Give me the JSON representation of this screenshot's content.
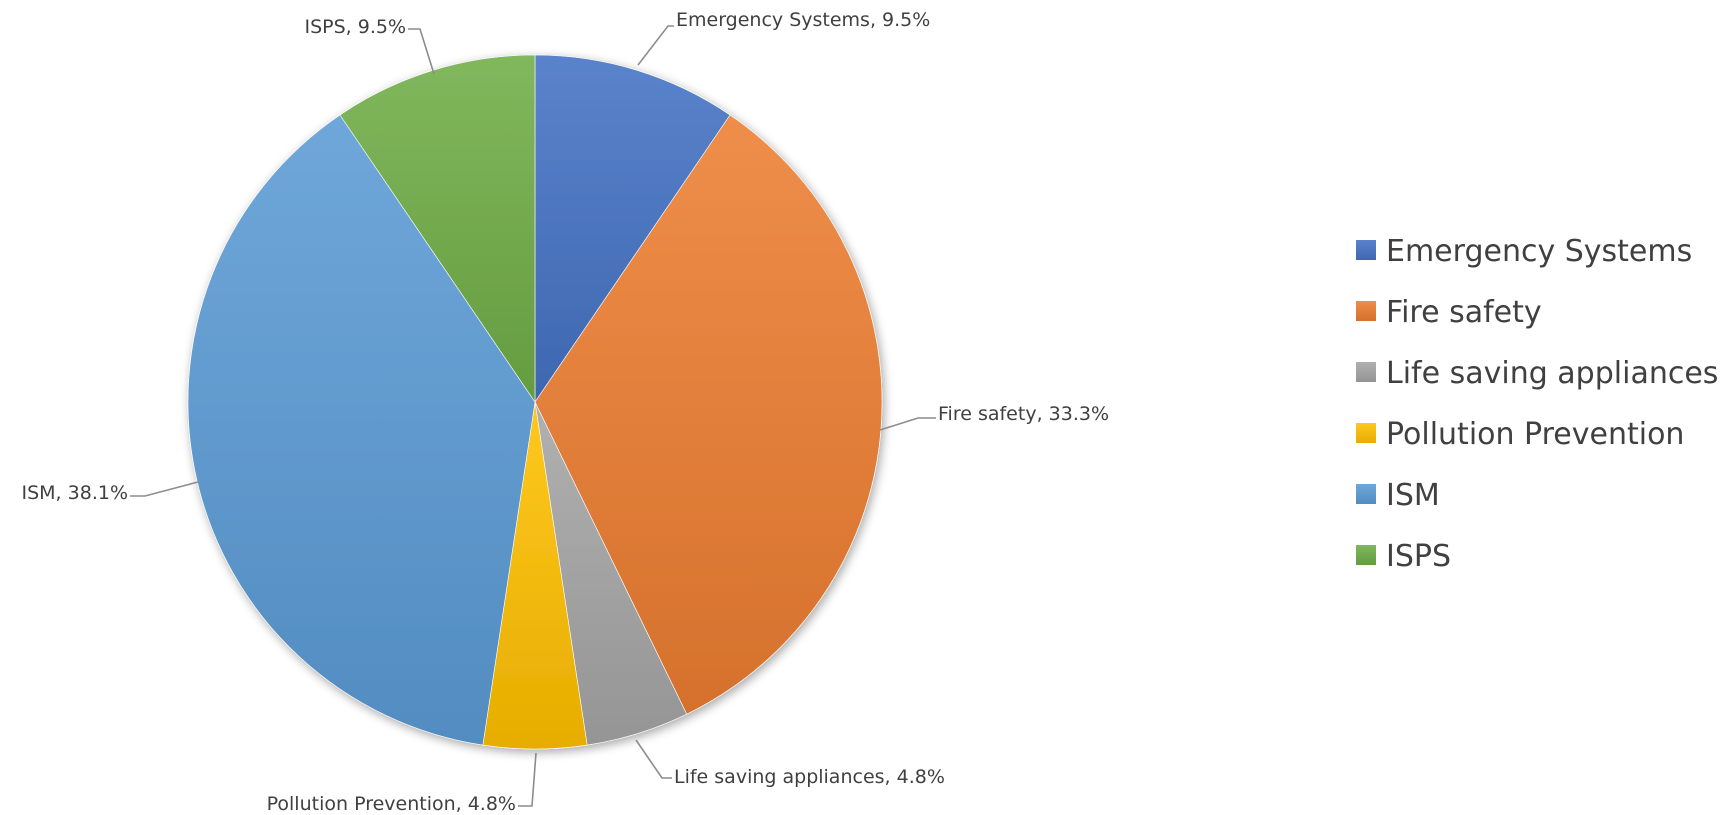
{
  "chart_data": {
    "type": "pie",
    "title": "",
    "categories": [
      "Emergency Systems",
      "Fire safety",
      "Life saving appliances",
      "Pollution Prevention",
      "ISM",
      "ISPS"
    ],
    "values": [
      9.5,
      33.3,
      4.8,
      4.8,
      38.1,
      9.5
    ],
    "data_labels": [
      "Emergency Systems, 9.5%",
      "Fire safety, 33.3%",
      "Life saving appliances, 4.8%",
      "Pollution Prevention, 4.8%",
      "ISM, 38.1%",
      "ISPS, 9.5%"
    ],
    "colors": [
      "#4472c4",
      "#ed7d31",
      "#a5a5a5",
      "#ffc000",
      "#5b9bd5",
      "#70ad47"
    ],
    "start_angle_deg": 0,
    "direction": "clockwise",
    "legend": {
      "position": "right",
      "entries": [
        "Emergency Systems",
        "Fire safety",
        "Life saving appliances",
        "Pollution Prevention",
        "ISM",
        "ISPS"
      ]
    }
  }
}
